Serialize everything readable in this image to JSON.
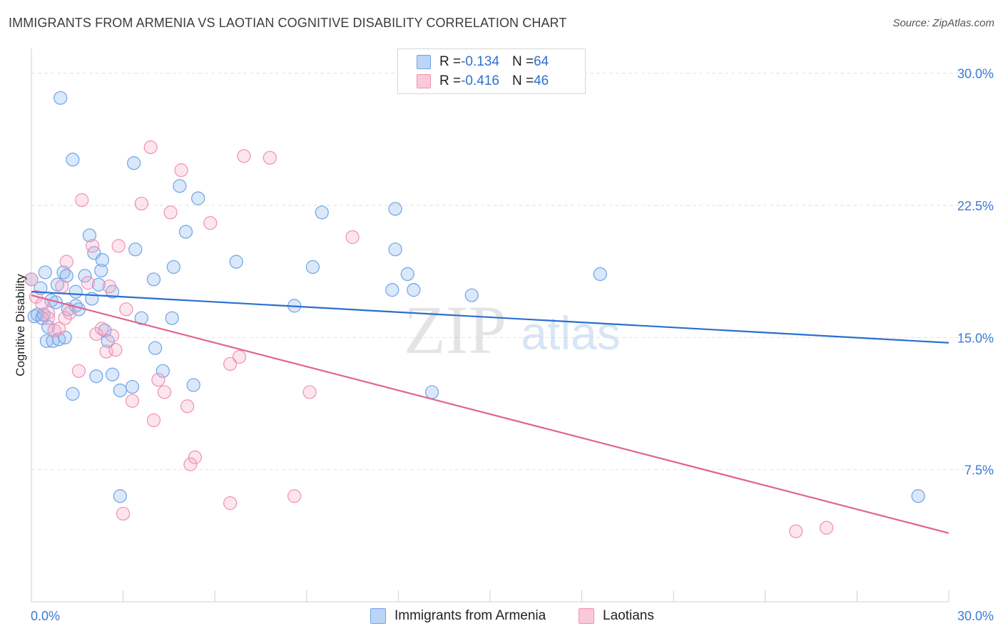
{
  "title": "IMMIGRANTS FROM ARMENIA VS LAOTIAN COGNITIVE DISABILITY CORRELATION CHART",
  "source": "Source: ZipAtlas.com",
  "watermark": {
    "zip": "ZIP",
    "atlas": "atlas"
  },
  "legend": {
    "armenia": {
      "r_label": "R = ",
      "r_value": "-0.134",
      "n_label": "N = ",
      "n_value": "64"
    },
    "laotians": {
      "r_label": "R = ",
      "r_value": "-0.416",
      "n_label": "N = ",
      "n_value": "46"
    }
  },
  "chart_data": {
    "type": "scatter",
    "title": "IMMIGRANTS FROM ARMENIA VS LAOTIAN COGNITIVE DISABILITY CORRELATION CHART",
    "xlabel": "",
    "ylabel": "Cognitive Disability",
    "xlim": [
      0,
      30
    ],
    "ylim": [
      0,
      31
    ],
    "x_tick_labels": [
      "0.0%",
      "30.0%"
    ],
    "y_ticks": [
      7.5,
      15.0,
      22.5,
      30.0
    ],
    "y_tick_labels": [
      "7.5%",
      "15.0%",
      "22.5%",
      "30.0%"
    ],
    "grid": true,
    "colors": {
      "armenia": "#6fa3e8",
      "armenia_line": "#2a6fcf",
      "laotians": "#f090b0",
      "laotians_line": "#e0648f"
    },
    "series": [
      {
        "name": "Immigrants from Armenia",
        "trend": {
          "x": [
            0,
            30
          ],
          "y": [
            17.6,
            14.7
          ]
        },
        "points": [
          [
            0.0,
            18.3
          ],
          [
            0.1,
            16.2
          ],
          [
            0.2,
            16.3
          ],
          [
            0.3,
            17.8
          ],
          [
            0.35,
            16.1
          ],
          [
            0.4,
            16.3
          ],
          [
            0.45,
            18.7
          ],
          [
            0.5,
            14.8
          ],
          [
            0.55,
            15.6
          ],
          [
            0.65,
            17.1
          ],
          [
            0.7,
            14.8
          ],
          [
            0.8,
            17.0
          ],
          [
            0.85,
            18.0
          ],
          [
            0.9,
            14.9
          ],
          [
            0.95,
            28.6
          ],
          [
            1.05,
            18.7
          ],
          [
            1.1,
            15.0
          ],
          [
            1.15,
            18.5
          ],
          [
            1.2,
            16.6
          ],
          [
            1.35,
            11.8
          ],
          [
            1.35,
            25.1
          ],
          [
            1.45,
            16.8
          ],
          [
            1.45,
            17.6
          ],
          [
            1.55,
            16.6
          ],
          [
            1.75,
            18.5
          ],
          [
            1.9,
            20.8
          ],
          [
            1.98,
            17.2
          ],
          [
            2.05,
            19.8
          ],
          [
            2.12,
            12.8
          ],
          [
            2.2,
            18.0
          ],
          [
            2.28,
            18.8
          ],
          [
            2.32,
            19.4
          ],
          [
            2.4,
            15.4
          ],
          [
            2.5,
            14.8
          ],
          [
            2.65,
            12.9
          ],
          [
            2.65,
            17.6
          ],
          [
            2.9,
            12.0
          ],
          [
            2.9,
            6.0
          ],
          [
            3.3,
            12.2
          ],
          [
            3.35,
            24.9
          ],
          [
            3.4,
            20.0
          ],
          [
            3.6,
            16.1
          ],
          [
            4.0,
            18.3
          ],
          [
            4.05,
            14.4
          ],
          [
            4.3,
            13.1
          ],
          [
            4.6,
            16.1
          ],
          [
            4.65,
            19.0
          ],
          [
            4.85,
            23.6
          ],
          [
            5.05,
            21.0
          ],
          [
            5.3,
            12.3
          ],
          [
            5.45,
            22.9
          ],
          [
            6.7,
            19.3
          ],
          [
            8.6,
            16.8
          ],
          [
            9.2,
            19.0
          ],
          [
            9.5,
            22.1
          ],
          [
            11.8,
            17.7
          ],
          [
            11.9,
            20.0
          ],
          [
            11.9,
            22.3
          ],
          [
            12.3,
            18.6
          ],
          [
            12.5,
            17.7
          ],
          [
            13.1,
            11.9
          ],
          [
            14.4,
            17.4
          ],
          [
            18.6,
            18.6
          ],
          [
            29.0,
            6.0
          ]
        ]
      },
      {
        "name": "Laotians",
        "trend": {
          "x": [
            0,
            30
          ],
          "y": [
            17.4,
            3.9
          ]
        },
        "points": [
          [
            0.0,
            18.3
          ],
          [
            0.15,
            17.3
          ],
          [
            0.35,
            16.9
          ],
          [
            0.55,
            16.4
          ],
          [
            0.55,
            16.1
          ],
          [
            0.75,
            15.4
          ],
          [
            0.9,
            15.5
          ],
          [
            1.0,
            17.9
          ],
          [
            1.1,
            16.1
          ],
          [
            1.15,
            19.3
          ],
          [
            1.25,
            16.4
          ],
          [
            1.55,
            13.1
          ],
          [
            1.65,
            22.8
          ],
          [
            1.85,
            18.1
          ],
          [
            2.0,
            20.2
          ],
          [
            2.12,
            15.2
          ],
          [
            2.3,
            15.5
          ],
          [
            2.45,
            14.2
          ],
          [
            2.55,
            17.9
          ],
          [
            2.65,
            15.1
          ],
          [
            2.75,
            14.3
          ],
          [
            2.85,
            20.2
          ],
          [
            3.0,
            5.0
          ],
          [
            3.1,
            16.6
          ],
          [
            3.3,
            11.4
          ],
          [
            3.6,
            22.6
          ],
          [
            3.9,
            25.8
          ],
          [
            4.0,
            10.3
          ],
          [
            4.15,
            12.6
          ],
          [
            4.35,
            11.9
          ],
          [
            4.55,
            22.1
          ],
          [
            4.9,
            24.5
          ],
          [
            5.1,
            11.1
          ],
          [
            5.2,
            7.8
          ],
          [
            5.35,
            8.2
          ],
          [
            5.85,
            21.5
          ],
          [
            6.5,
            13.5
          ],
          [
            6.5,
            5.6
          ],
          [
            6.8,
            13.9
          ],
          [
            6.95,
            25.3
          ],
          [
            7.8,
            25.2
          ],
          [
            8.6,
            6.0
          ],
          [
            9.1,
            11.9
          ],
          [
            10.5,
            20.7
          ],
          [
            25.0,
            4.0
          ],
          [
            26.0,
            4.2
          ]
        ]
      }
    ]
  },
  "bottom_legend": {
    "armenia": "Immigrants from Armenia",
    "laotians": "Laotians"
  }
}
